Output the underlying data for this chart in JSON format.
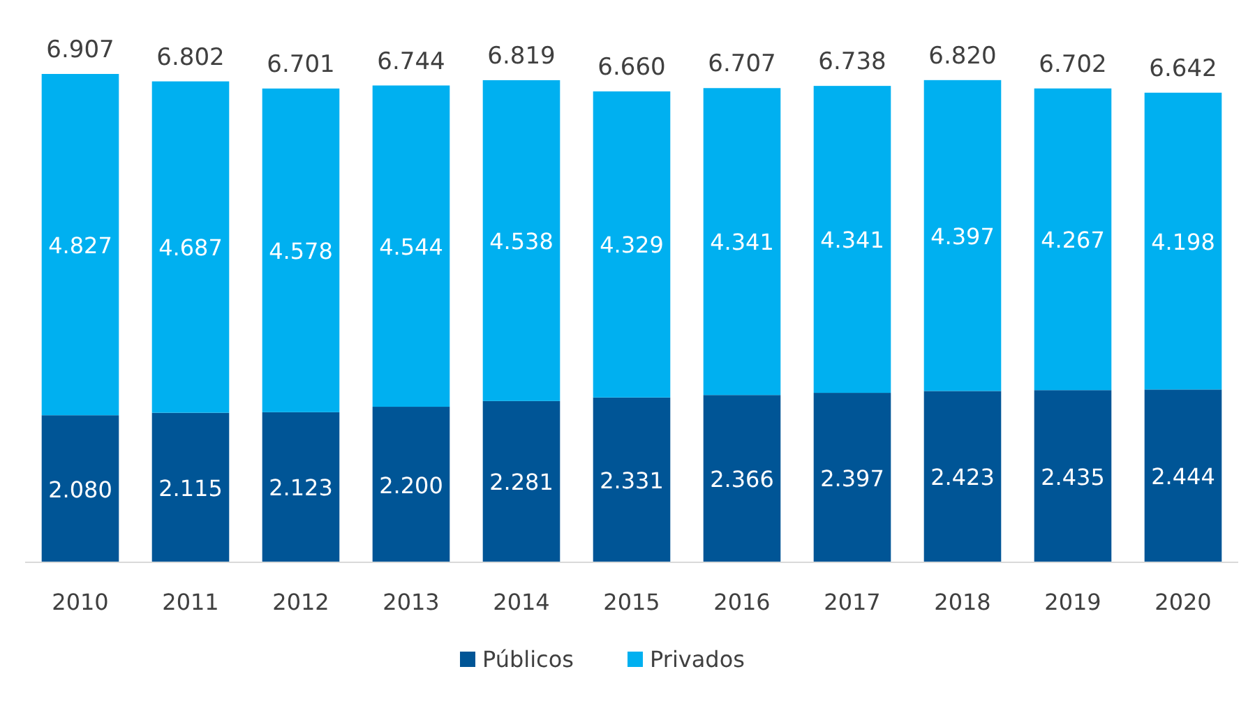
{
  "chart_data": {
    "type": "bar",
    "stacked": true,
    "legend": "bottom",
    "categories": [
      "2010",
      "2011",
      "2012",
      "2013",
      "2014",
      "2015",
      "2016",
      "2017",
      "2018",
      "2019",
      "2020"
    ],
    "series": [
      {
        "name": "Públicos",
        "color": "#005596",
        "values": [
          2080,
          2115,
          2123,
          2200,
          2281,
          2331,
          2366,
          2397,
          2423,
          2435,
          2444
        ],
        "value_labels": [
          "2.080",
          "2.115",
          "2.123",
          "2.200",
          "2.281",
          "2.331",
          "2.366",
          "2.397",
          "2.423",
          "2.435",
          "2.444"
        ]
      },
      {
        "name": "Privados",
        "color": "#00b0f0",
        "values": [
          4827,
          4687,
          4578,
          4544,
          4538,
          4329,
          4341,
          4341,
          4397,
          4267,
          4198
        ],
        "value_labels": [
          "4.827",
          "4.687",
          "4.578",
          "4.544",
          "4.538",
          "4.329",
          "4.341",
          "4.341",
          "4.397",
          "4.267",
          "4.198"
        ]
      }
    ],
    "totals": [
      "6.907",
      "6.802",
      "6.701",
      "6.744",
      "6.819",
      "6.660",
      "6.707",
      "6.738",
      "6.820",
      "6.702",
      "6.642"
    ]
  }
}
